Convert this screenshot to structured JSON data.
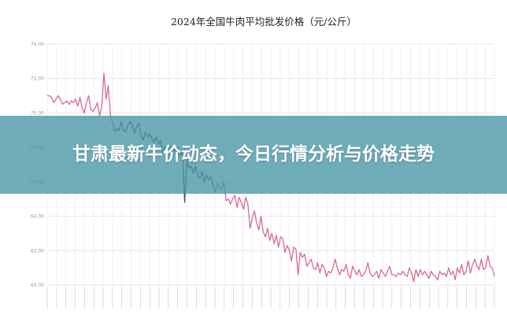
{
  "banner": {
    "title": "甘肃最新牛价动态，今日行情分析与价格走势"
  },
  "chart_data": {
    "type": "line",
    "title": "2024年全国牛肉平均批发价格（元/公斤）",
    "xlabel": "",
    "ylabel": "",
    "ylim": [
      60,
      74
    ],
    "yticks": [
      "74.00",
      "72.00",
      "70.00",
      "68.00",
      "66.00",
      "64.00",
      "62.00",
      "60.00"
    ],
    "grid": true,
    "legend": "none",
    "colors": {
      "line": "#d9679a",
      "line_dip": "#4a4f7a",
      "grid": "#e6e6e6",
      "text": "#222222",
      "axis_text": "#999999"
    },
    "series": [
      {
        "values": [
          71.0,
          71.0,
          70.9,
          70.6,
          70.8,
          71.0,
          70.8,
          70.5,
          70.6,
          70.7,
          70.5,
          70.7,
          70.6,
          70.8,
          70.4,
          70.9,
          70.3,
          70.0,
          70.6,
          71.0,
          70.2,
          70.1,
          70.3,
          70.6,
          69.8,
          70.4,
          72.3,
          70.8,
          71.6,
          69.8,
          69.4,
          68.9,
          69.1,
          69.0,
          69.5,
          69.0,
          68.9,
          69.3,
          69.5,
          69.3,
          68.8,
          69.2,
          69.4,
          68.7,
          68.4,
          68.9,
          68.6,
          68.8,
          68.5,
          68.3,
          68.6,
          68.2,
          68.4,
          67.6,
          68.0,
          67.8,
          68.1,
          67.7,
          68.0,
          67.6,
          68.0,
          67.5,
          67.8,
          64.8,
          67.2,
          66.8,
          66.9,
          66.5,
          66.9,
          66.4,
          66.2,
          66.6,
          66.0,
          66.4,
          66.1,
          66.3,
          65.8,
          65.4,
          65.9,
          65.6,
          65.6,
          66.0,
          64.9,
          65.0,
          64.7,
          65.0,
          65.2,
          64.5,
          65.1,
          64.8,
          64.4,
          65.1,
          64.7,
          63.3,
          63.9,
          64.3,
          63.6,
          63.2,
          64.0,
          63.1,
          62.8,
          63.3,
          62.6,
          63.0,
          62.4,
          62.9,
          62.2,
          62.8,
          62.7,
          61.9,
          62.3,
          62.0,
          61.4,
          62.2,
          62.1,
          60.6,
          61.9,
          61.6,
          61.8,
          61.1,
          61.3,
          61.5,
          61.0,
          60.9,
          61.3,
          60.7,
          61.2,
          61.0,
          60.5,
          60.8,
          60.7,
          61.0,
          61.5,
          61.0,
          60.6,
          60.9,
          60.8,
          61.2,
          60.6,
          60.4,
          61.1,
          60.8,
          60.6,
          60.9,
          60.5,
          60.6,
          60.8,
          61.3,
          60.7,
          60.5,
          60.6,
          60.8,
          60.4,
          60.9,
          60.7,
          60.5,
          60.8,
          61.1,
          60.6,
          60.6,
          60.5,
          60.7,
          60.6,
          60.8,
          60.6,
          60.5,
          61.0,
          60.7,
          60.2,
          60.9,
          60.5,
          60.9,
          60.6,
          60.8,
          60.6,
          60.4,
          60.8,
          60.6,
          60.5,
          60.3,
          60.8,
          60.6,
          60.7,
          60.5,
          61.0,
          60.6,
          60.8,
          60.3,
          61.0,
          60.7,
          61.2,
          60.6,
          60.8,
          61.4,
          60.7,
          61.2,
          61.5,
          61.1,
          60.9,
          61.5,
          60.9,
          61.0,
          61.7,
          61.1,
          61.0,
          60.5
        ]
      }
    ]
  }
}
